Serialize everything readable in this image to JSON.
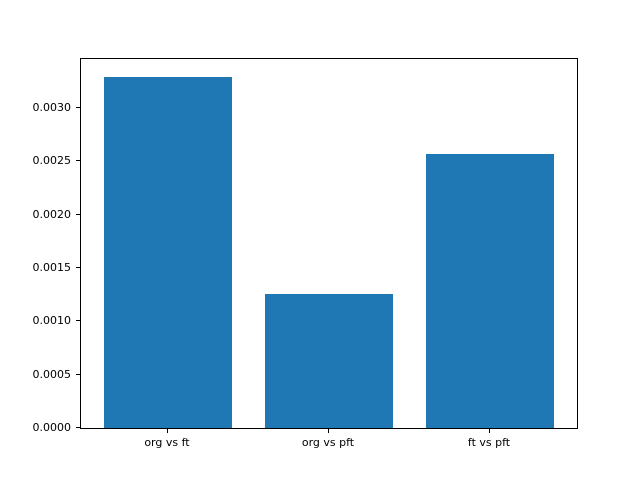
{
  "chart_data": {
    "type": "bar",
    "categories": [
      "org vs ft",
      "org vs pft",
      "ft vs pft"
    ],
    "values": [
      0.00329,
      0.00126,
      0.00257
    ],
    "title": "",
    "xlabel": "",
    "ylabel": "",
    "ylim": [
      0,
      0.003457
    ],
    "yticks": [
      0.0,
      0.0005,
      0.001,
      0.0015,
      0.002,
      0.0025,
      0.003
    ],
    "ytick_labels": [
      "0.0000",
      "0.0005",
      "0.0010",
      "0.0015",
      "0.0020",
      "0.0025",
      "0.0030"
    ],
    "bar_color": "#1f77b4",
    "background_color": "#ffffff",
    "grid": false,
    "legend": "none",
    "bar_width_fraction": 0.8,
    "xlim": [
      -0.54,
      2.54
    ]
  }
}
